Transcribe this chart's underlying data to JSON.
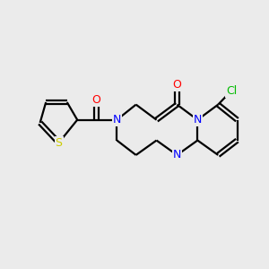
{
  "bg": "#ebebeb",
  "bond_color": "#000000",
  "lw": 1.6,
  "atom_colors": {
    "N": "#0000ff",
    "O": "#ff0000",
    "S": "#cccc00",
    "Cl": "#00bb00"
  },
  "figsize": [
    3.0,
    3.0
  ],
  "dpi": 100
}
